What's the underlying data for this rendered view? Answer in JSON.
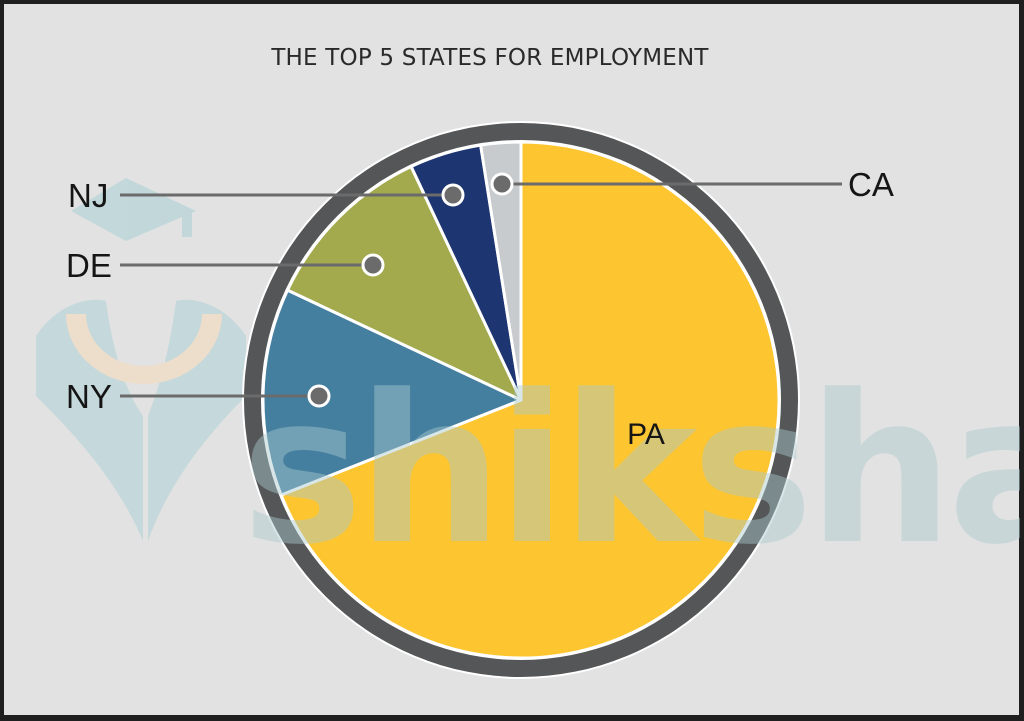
{
  "chart_data": {
    "type": "pie",
    "title": "THE TOP 5 STATES FOR EMPLOYMENT",
    "categories": [
      "PA",
      "NY",
      "DE",
      "NJ",
      "CA"
    ],
    "values": [
      69,
      13,
      11,
      4.5,
      2.5
    ],
    "unit": "% share (estimated from slice angles; no values shown)",
    "colors": [
      "#fdc530",
      "#457f9f",
      "#a2aa4d",
      "#1d3571",
      "#c7cbce"
    ],
    "start_angle_deg": 0,
    "direction": "clockwise",
    "legend": "none (callout labels)",
    "labels": [
      {
        "name": "PA",
        "placement": "inside"
      },
      {
        "name": "NY",
        "placement": "callout-left"
      },
      {
        "name": "DE",
        "placement": "callout-left"
      },
      {
        "name": "NJ",
        "placement": "callout-left"
      },
      {
        "name": "CA",
        "placement": "callout-right"
      }
    ]
  },
  "watermark": {
    "text": "shiksha"
  },
  "style": {
    "background": "#e2e2e2",
    "ring_color": "#555657",
    "marker_color": "#6b6b6b",
    "leader_color": "#6b6b6b",
    "watermark_teal": "#b7d4d8",
    "watermark_orange": "#f3dcc0"
  }
}
